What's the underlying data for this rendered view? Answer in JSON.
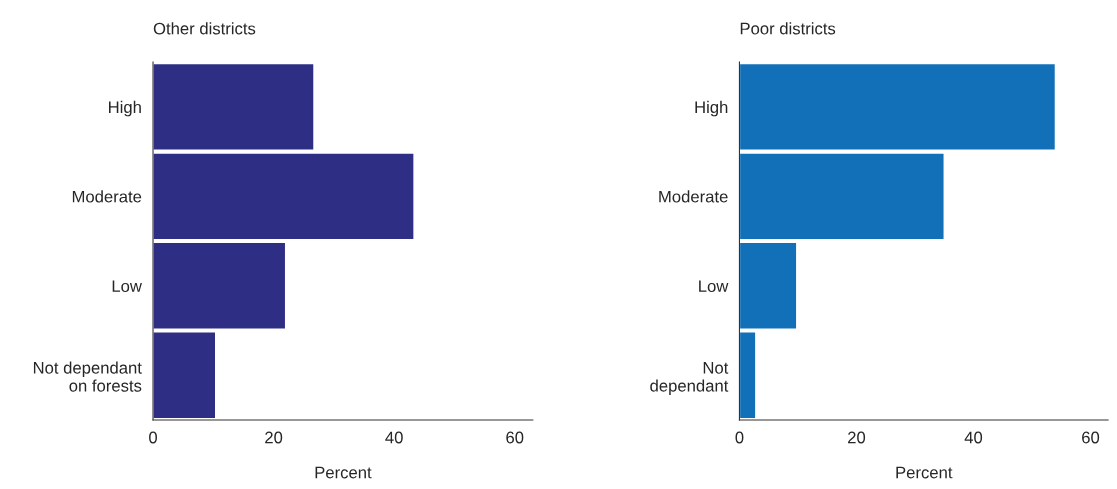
{
  "chart_data": [
    {
      "type": "bar",
      "orientation": "horizontal",
      "title": "Other districts",
      "xlabel": "Percent",
      "categories": [
        "High",
        "Moderate",
        "Low",
        "Not dependant\non forests"
      ],
      "values": [
        26.7,
        43.3,
        22,
        10.4
      ],
      "color": "#2e2f84",
      "xlim": [
        0,
        63
      ],
      "xticks": [
        0,
        20,
        40,
        60
      ],
      "grid": false,
      "legend": false
    },
    {
      "type": "bar",
      "orientation": "horizontal",
      "title": "Poor districts",
      "xlabel": "Percent",
      "categories": [
        "High",
        "Moderate",
        "Low",
        "Not\ndependant"
      ],
      "values": [
        54,
        35,
        9.8,
        2.8
      ],
      "color": "#1170b8",
      "xlim": [
        0,
        63
      ],
      "xticks": [
        0,
        20,
        40,
        60
      ],
      "grid": false,
      "legend": false
    }
  ]
}
